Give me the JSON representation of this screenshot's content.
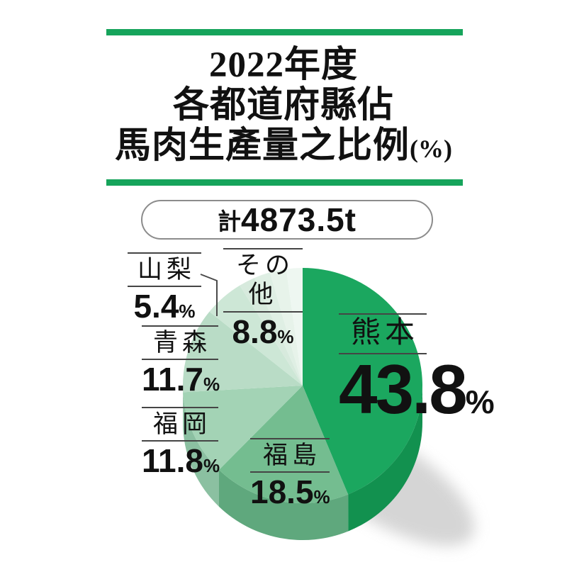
{
  "page": {
    "background": "#ffffff",
    "accent_green": "#16a45b"
  },
  "header": {
    "title_line1": "2022年度",
    "title_line2": "各都道府縣佔",
    "title_line3": "馬肉生產量之比例",
    "title_line3_suffix": "(%)"
  },
  "total_badge": {
    "prefix": "計",
    "value": "4873.5t"
  },
  "chart_data": {
    "type": "pie",
    "title": "2022年度各都道府縣佔馬肉生產量之比例(%)",
    "total_label": "計4873.5t",
    "unit": "%",
    "start_angle_deg": 0,
    "direction": "clockwise",
    "style": "3d-pie, green monochrome gradient, largest slice starts at 12 o'clock",
    "slices": [
      {
        "label": "熊本",
        "value": 43.8,
        "value_str": "43.8",
        "color": "#1ba75f",
        "wall_color": "#12914f"
      },
      {
        "label": "福島",
        "value": 18.5,
        "value_str": "18.5",
        "color": "#74bd90",
        "wall_color": "#5fa87d"
      },
      {
        "label": "福岡",
        "value": 11.8,
        "value_str": "11.8",
        "color": "#a3d3b5",
        "wall_color": "#8bc0a1"
      },
      {
        "label": "青森",
        "value": 11.7,
        "value_str": "11.7",
        "color": "#b9dcc6",
        "wall_color": "#a3c9b1"
      },
      {
        "label": "山梨",
        "value": 5.4,
        "value_str": "5.4",
        "color": "#cde7d6",
        "wall_color": "#b8d5c3"
      },
      {
        "label": "その他",
        "value": 8.8,
        "value_str": "8.8",
        "color": "#d7eadd",
        "wall_color": "#c2d9ca",
        "sub_shades": [
          "#d7eadd",
          "#dfefe4",
          "#e7f3ea",
          "#eef7f1"
        ]
      }
    ]
  }
}
